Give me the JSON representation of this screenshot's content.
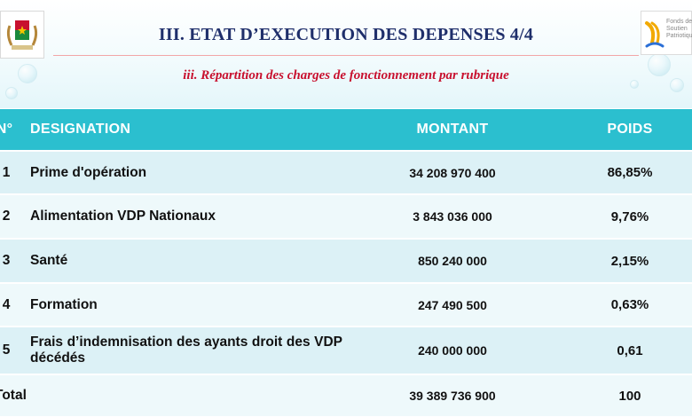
{
  "slide": {
    "title": "III. ETAT D’EXECUTION DES DEPENSES 4/4",
    "subtitle": "iii. Répartition des charges de fonctionnement par rubrique",
    "fund_logo_text": "Fonds de\nSoutien\nPatriotique"
  },
  "table": {
    "headers": {
      "no": "N°",
      "designation": "DESIGNATION",
      "montant": "MONTANT",
      "poids": "POIDS"
    },
    "rows": [
      {
        "no": "1",
        "designation": "Prime d'opération",
        "montant": "34 208 970 400",
        "poids": "86,85%"
      },
      {
        "no": "2",
        "designation": "Alimentation VDP Nationaux",
        "montant": "3 843 036 000",
        "poids": "9,76%"
      },
      {
        "no": "3",
        "designation": "Santé",
        "montant": "850 240 000",
        "poids": "2,15%"
      },
      {
        "no": "4",
        "designation": "Formation",
        "montant": "247 490 500",
        "poids": "0,63%"
      },
      {
        "no": "5",
        "designation": "Frais d’indemnisation des ayants droit des VDP décédés",
        "montant": "240 000 000",
        "poids": "0,61"
      }
    ],
    "total": {
      "label": "Total",
      "montant": "39 389 736 900",
      "poids": "100"
    }
  },
  "colors": {
    "title": "#1f2f6b",
    "subtitle": "#c8102e",
    "header_bg": "#2bbfcf",
    "row_bg": "#dcf1f6",
    "row_alt_bg": "#eef9fb"
  }
}
